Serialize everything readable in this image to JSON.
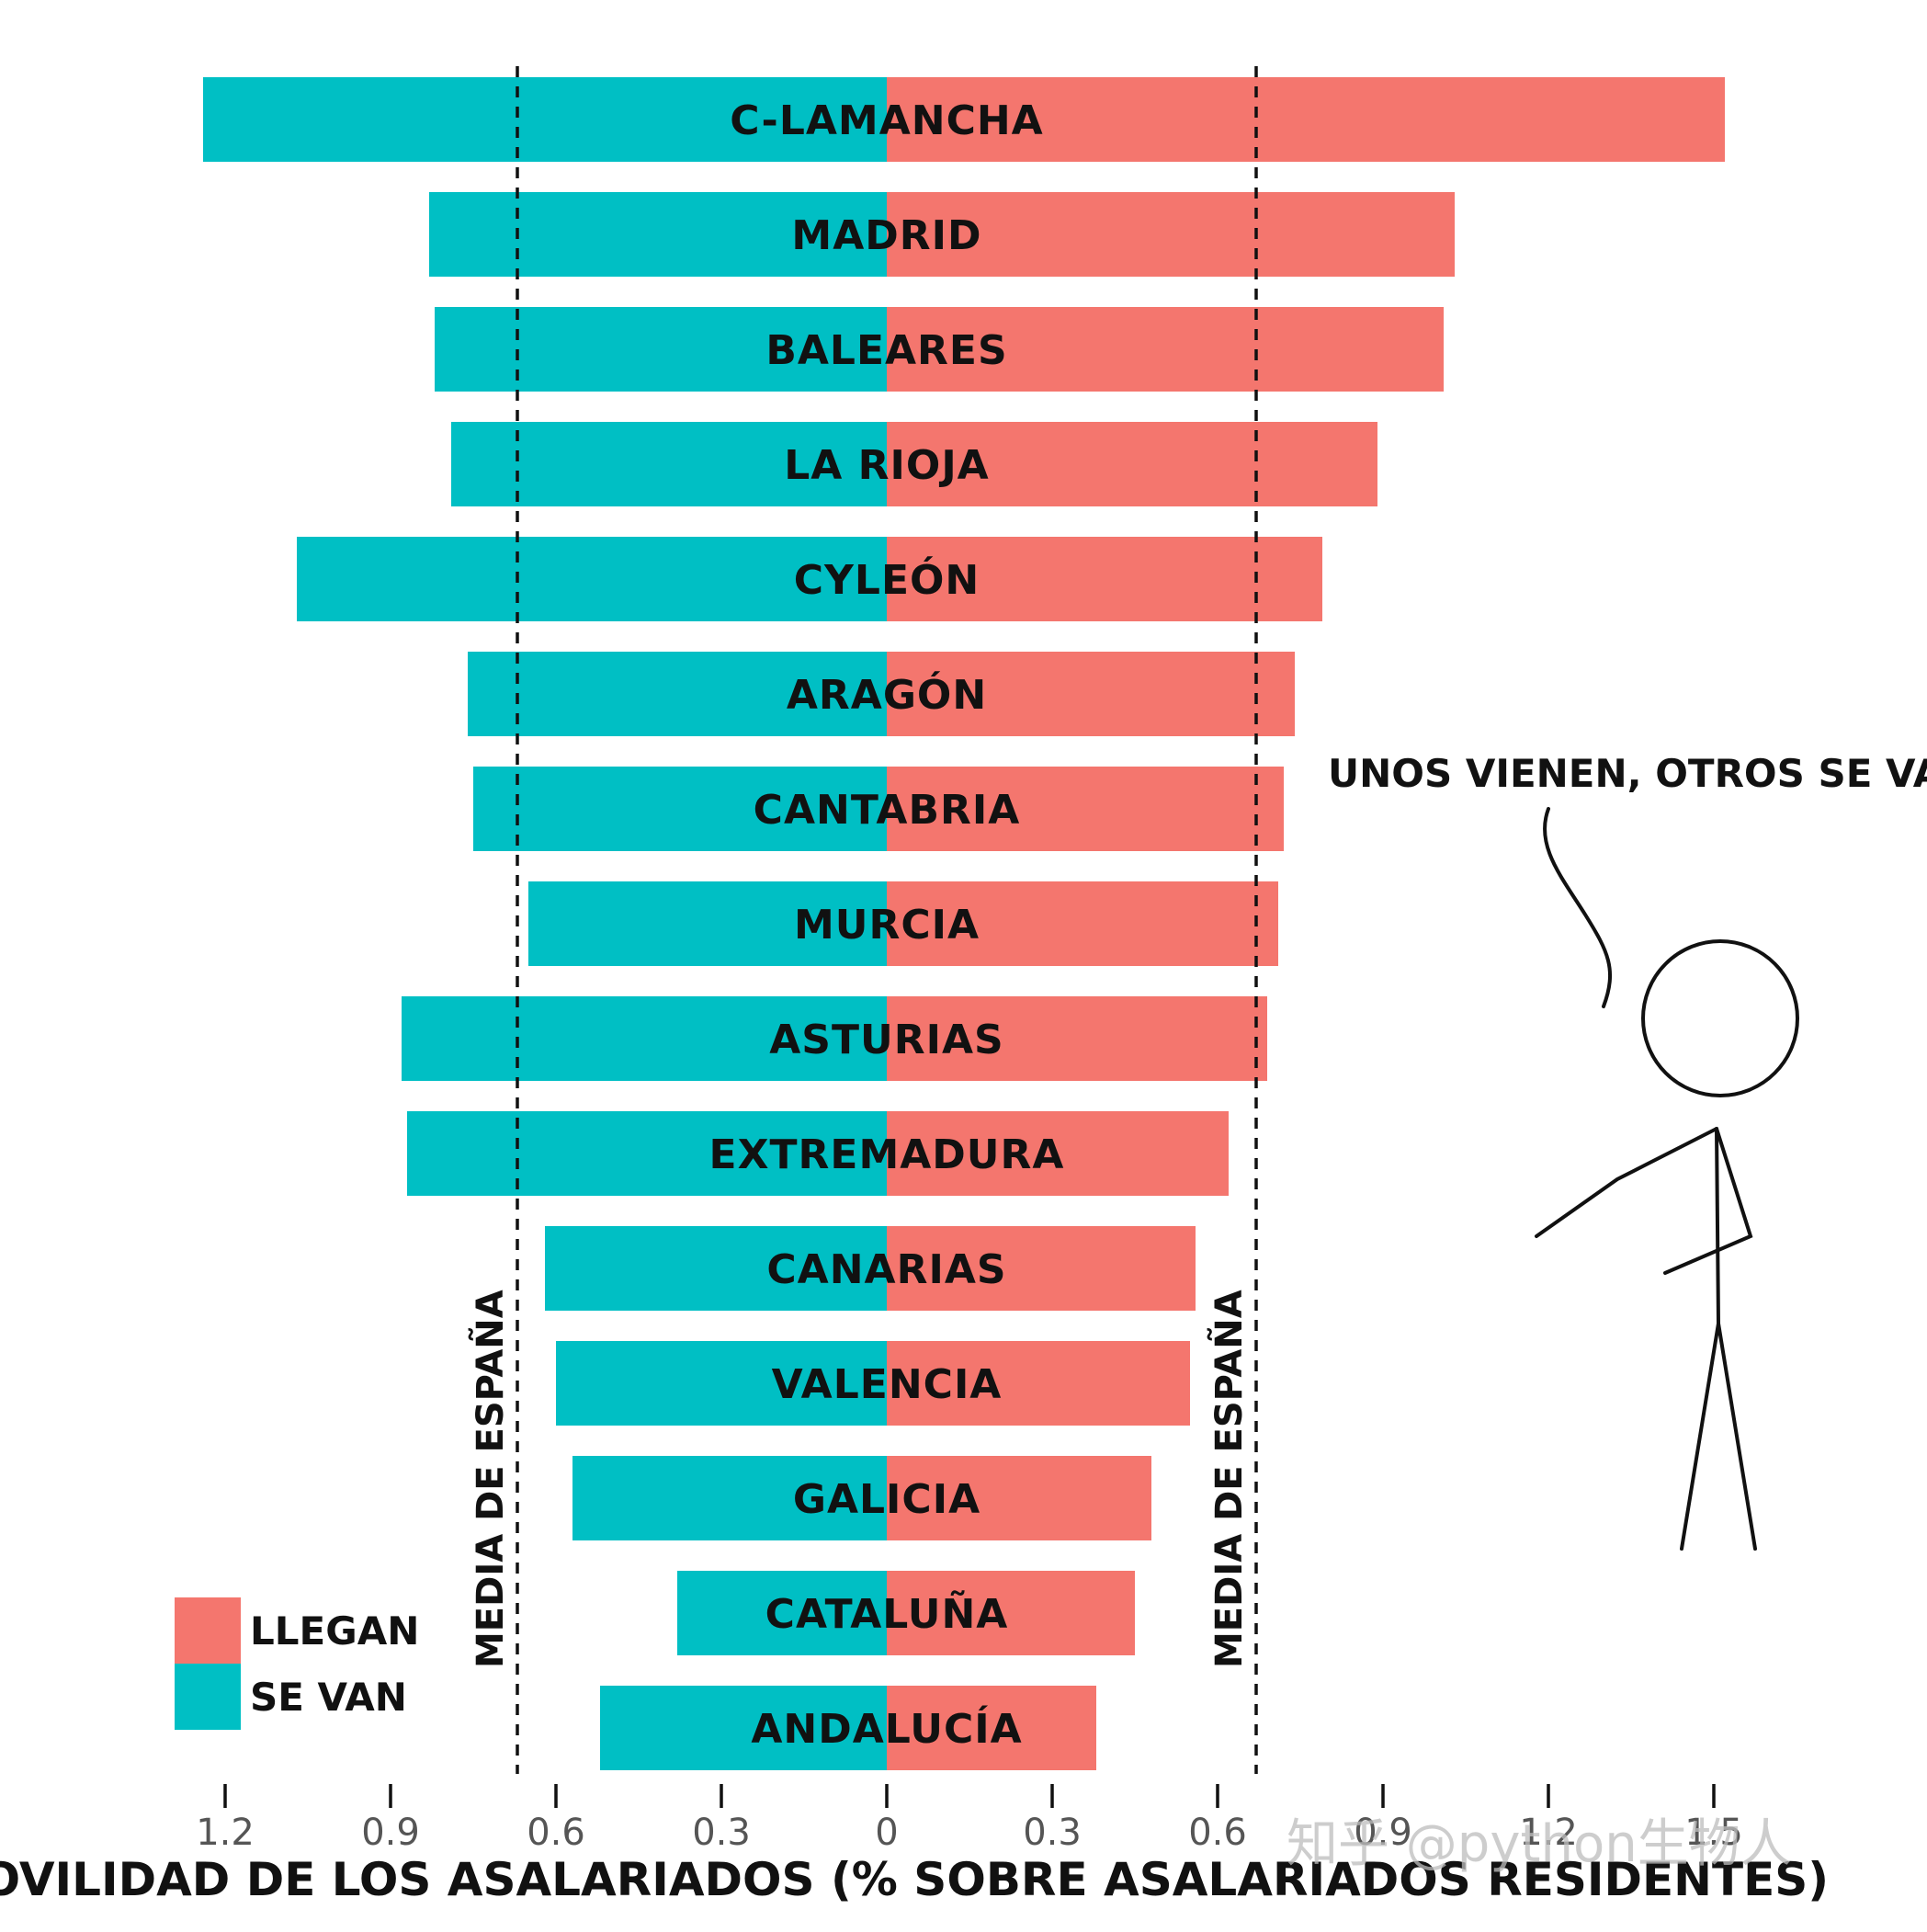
{
  "colors": {
    "llegan": "#f4766e",
    "se_van": "#00bfc4",
    "ink": "#111111"
  },
  "chart_data": {
    "type": "bar",
    "orientation": "horizontal-diverging",
    "categories": [
      "C-LAMANCHA",
      "MADRID",
      "BALEARES",
      "LA RIOJA",
      "CYLEÓN",
      "ARAGÓN",
      "CANTABRIA",
      "MURCIA",
      "ASTURIAS",
      "EXTREMADURA",
      "CANARIAS",
      "VALENCIA",
      "GALICIA",
      "CATALUÑA",
      "ANDALUCÍA"
    ],
    "series": [
      {
        "name": "LLEGAN",
        "side": "right",
        "values": [
          1.52,
          1.03,
          1.01,
          0.89,
          0.79,
          0.74,
          0.72,
          0.71,
          0.69,
          0.62,
          0.56,
          0.55,
          0.48,
          0.45,
          0.38
        ]
      },
      {
        "name": "SE VAN",
        "side": "left",
        "values": [
          1.24,
          0.83,
          0.82,
          0.79,
          1.07,
          0.76,
          0.75,
          0.65,
          0.88,
          0.87,
          0.62,
          0.6,
          0.57,
          0.38,
          0.52
        ]
      }
    ],
    "mean_lines": [
      {
        "side": "left",
        "value": 0.67,
        "label": "MEDIA DE ESPAÑA"
      },
      {
        "side": "right",
        "value": 0.67,
        "label": "MEDIA DE ESPAÑA"
      }
    ],
    "xticks": [
      {
        "value": -1.2,
        "label": "1.2"
      },
      {
        "value": -0.9,
        "label": "0.9"
      },
      {
        "value": -0.6,
        "label": "0.6"
      },
      {
        "value": -0.3,
        "label": "0.3"
      },
      {
        "value": 0,
        "label": "0"
      },
      {
        "value": 0.3,
        "label": "0.3"
      },
      {
        "value": 0.6,
        "label": "0.6"
      },
      {
        "value": 0.9,
        "label": "0.9"
      },
      {
        "value": 1.2,
        "label": "1.2"
      },
      {
        "value": 1.5,
        "label": "1.5"
      }
    ],
    "xlim": [
      -1.24,
      1.52
    ],
    "xlabel": "MOVILIDAD DE LOS ASALARIADOS (% SOBRE ASALARIADOS RESIDENTES)",
    "title": "",
    "legend": {
      "position": "bottom-left",
      "entries": [
        "LLEGAN",
        "SE VAN"
      ]
    },
    "annotation": "UNOS VIENEN, OTROS SE VAN",
    "grid": false
  },
  "watermark": "知乎 @python生物人"
}
